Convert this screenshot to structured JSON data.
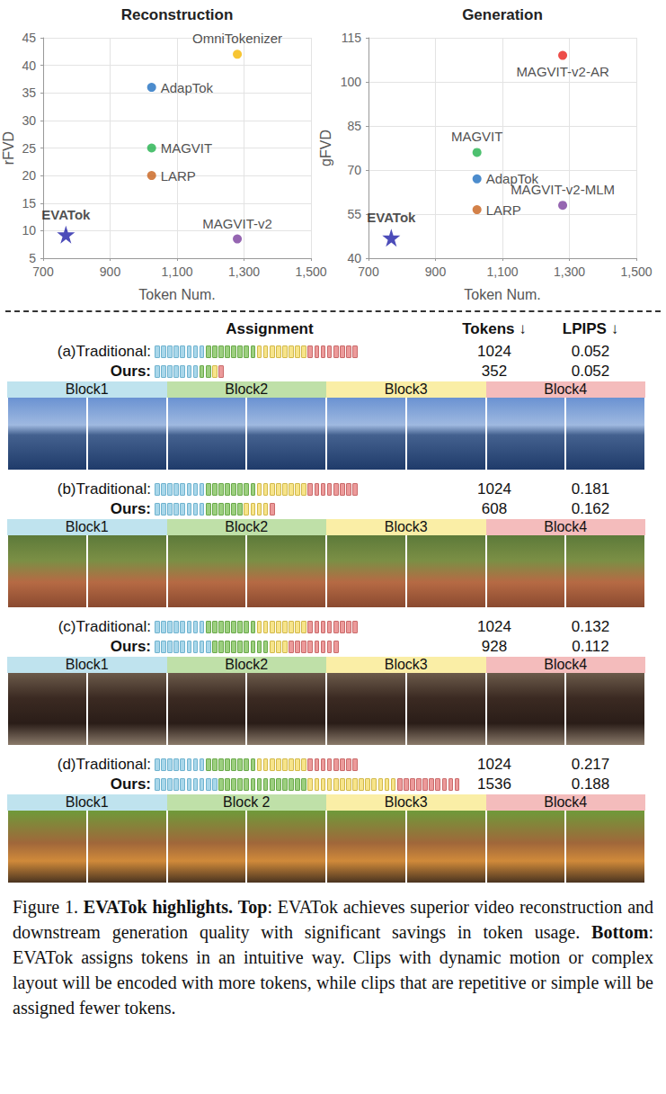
{
  "chart_data": [
    {
      "type": "scatter",
      "title": "Reconstruction",
      "x_label": "Token Num.",
      "y_label": "rFVD",
      "xlim": [
        700,
        1500
      ],
      "xticks": [
        700,
        900,
        1100,
        1300,
        1500
      ],
      "ylim": [
        5,
        45
      ],
      "yticks": [
        5,
        10,
        15,
        20,
        25,
        30,
        35,
        40,
        45
      ],
      "grid": true,
      "series": [
        {
          "name": "OmniTokenizer",
          "color": "#f5b700",
          "marker": "circle",
          "x": [
            1280
          ],
          "values": [
            42
          ]
        },
        {
          "name": "AdapTok",
          "color": "#1f6fc0",
          "marker": "circle",
          "x": [
            1024
          ],
          "values": [
            36
          ]
        },
        {
          "name": "MAGVIT",
          "color": "#22b14c",
          "marker": "circle",
          "x": [
            1024
          ],
          "values": [
            25
          ]
        },
        {
          "name": "LARP",
          "color": "#c8611c",
          "marker": "circle",
          "x": [
            1024
          ],
          "values": [
            20
          ]
        },
        {
          "name": "EVATok",
          "color": "#1f1fa8",
          "marker": "star",
          "x": [
            768
          ],
          "values": [
            9.3
          ]
        },
        {
          "name": "MAGVIT-v2",
          "color": "#7b3f9e",
          "marker": "circle",
          "x": [
            1280
          ],
          "values": [
            8.5
          ]
        }
      ]
    },
    {
      "type": "scatter",
      "title": "Generation",
      "x_label": "Token Num.",
      "y_label": "gFVD",
      "xlim": [
        700,
        1500
      ],
      "xticks": [
        700,
        900,
        1100,
        1300,
        1500
      ],
      "ylim": [
        40,
        115
      ],
      "yticks": [
        40,
        55,
        70,
        85,
        100,
        115
      ],
      "grid": true,
      "series": [
        {
          "name": "MAGVIT-v2-AR",
          "color": "#e8211b",
          "marker": "circle",
          "x": [
            1280
          ],
          "values": [
            109
          ]
        },
        {
          "name": "MAGVIT",
          "color": "#22b14c",
          "marker": "circle",
          "x": [
            1024
          ],
          "values": [
            76
          ]
        },
        {
          "name": "AdapTok",
          "color": "#1f6fc0",
          "marker": "circle",
          "x": [
            1024
          ],
          "values": [
            67
          ]
        },
        {
          "name": "MAGVIT-v2-MLM",
          "color": "#7b3f9e",
          "marker": "circle",
          "x": [
            1280
          ],
          "values": [
            58
          ]
        },
        {
          "name": "LARP",
          "color": "#c8611c",
          "marker": "circle",
          "x": [
            1024
          ],
          "values": [
            56.5
          ]
        },
        {
          "name": "EVATok",
          "color": "#1f1fa8",
          "marker": "star",
          "x": [
            768
          ],
          "values": [
            47
          ]
        }
      ]
    }
  ],
  "assignment": {
    "header": {
      "title": "Assignment",
      "tokens": "Tokens ↓",
      "lpips": "LPIPS ↓"
    },
    "rows": [
      {
        "letter": "(a)",
        "blocks": [
          "Block1",
          "Block2",
          "Block3",
          "Block4"
        ],
        "traditional": {
          "label": "Traditional:",
          "block_tokens": [
            256,
            256,
            256,
            256
          ],
          "tokens": 1024,
          "lpips": 0.052
        },
        "ours": {
          "label": "Ours:",
          "block_tokens": [
            224,
            64,
            32,
            32
          ],
          "tokens": 352,
          "lpips": 0.052
        }
      },
      {
        "letter": "(b)",
        "blocks": [
          "Block1",
          "Block2",
          "Block3",
          "Block4"
        ],
        "traditional": {
          "label": "Traditional:",
          "block_tokens": [
            256,
            256,
            256,
            256
          ],
          "tokens": 1024,
          "lpips": 0.181
        },
        "ours": {
          "label": "Ours:",
          "block_tokens": [
            256,
            192,
            128,
            32
          ],
          "tokens": 608,
          "lpips": 0.162
        }
      },
      {
        "letter": "(c)",
        "blocks": [
          "Block1",
          "Block2",
          "Block3",
          "Block4"
        ],
        "traditional": {
          "label": "Traditional:",
          "block_tokens": [
            256,
            256,
            256,
            256
          ],
          "tokens": 1024,
          "lpips": 0.132
        },
        "ours": {
          "label": "Ours:",
          "block_tokens": [
            288,
            288,
            96,
            256
          ],
          "tokens": 928,
          "lpips": 0.112
        }
      },
      {
        "letter": "(d)",
        "blocks": [
          "Block1",
          "Block 2",
          "Block3",
          "Block4"
        ],
        "traditional": {
          "label": "Traditional:",
          "block_tokens": [
            256,
            256,
            256,
            256
          ],
          "tokens": 1024,
          "lpips": 0.217
        },
        "ours": {
          "label": "Ours:",
          "block_tokens": [
            320,
            448,
            448,
            320
          ],
          "tokens": 1536,
          "lpips": 0.188
        }
      }
    ]
  },
  "caption": [
    {
      "text": "Figure 1. ",
      "bold": false
    },
    {
      "text": "EVATok highlights.",
      "bold": true
    },
    {
      "text": " ",
      "bold": false
    },
    {
      "text": "Top",
      "bold": true
    },
    {
      "text": ": EVATok achieves superior video reconstruction and downstream generation quality with significant savings in token usage. ",
      "bold": false
    },
    {
      "text": "Bottom",
      "bold": true
    },
    {
      "text": ": EVATok assigns tokens in an intuitive way. Clips with dynamic motion or complex layout will be encoded with more tokens, while clips that are repetitive or simple will be assigned fewer tokens.",
      "bold": false
    }
  ]
}
